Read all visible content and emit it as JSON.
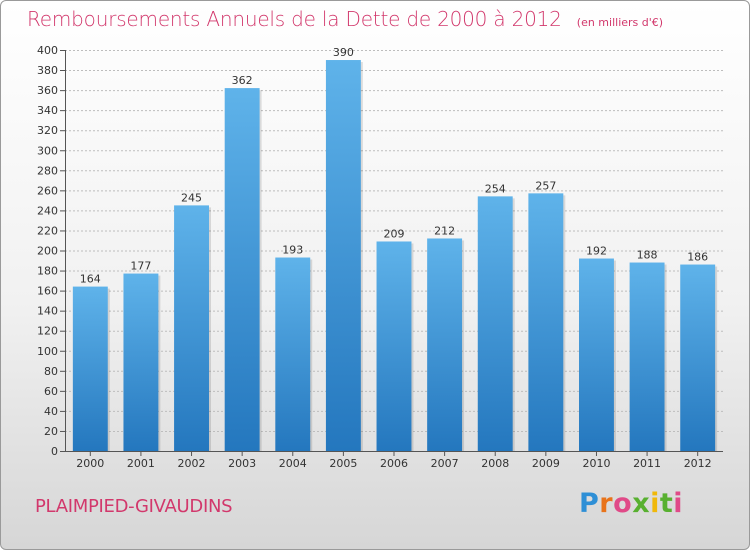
{
  "header": {
    "title": "Remboursements Annuels de la Dette de 2000 à 2012",
    "subtitle": "(en milliers d'€)"
  },
  "footer": {
    "commune": "PLAIMPIED-GIVAUDINS",
    "brand": "Proxiti"
  },
  "colors": {
    "title": "#d2386c",
    "bar_top": "#5fb3ea",
    "bar_bottom": "#2477be"
  },
  "chart_data": {
    "type": "bar",
    "title": "Remboursements Annuels de la Dette de 2000 à 2012",
    "subtitle": "(en milliers d'€)",
    "xlabel": "",
    "ylabel": "",
    "categories": [
      "2000",
      "2001",
      "2002",
      "2003",
      "2004",
      "2005",
      "2006",
      "2007",
      "2008",
      "2009",
      "2010",
      "2011",
      "2012"
    ],
    "values": [
      164,
      177,
      245,
      362,
      193,
      390,
      209,
      212,
      254,
      257,
      192,
      188,
      186
    ],
    "data_labels": [
      "164",
      "177",
      "245",
      "362",
      "193",
      "390",
      "209",
      "212",
      "254",
      "257",
      "192",
      "188",
      "186"
    ],
    "ylim": [
      0,
      400
    ],
    "yticks": [
      "0",
      "20",
      "40",
      "60",
      "80",
      "100",
      "120",
      "140",
      "160",
      "180",
      "200",
      "220",
      "240",
      "260",
      "280",
      "300",
      "320",
      "340",
      "360",
      "380",
      "400"
    ],
    "grid": true,
    "legend": "none"
  }
}
